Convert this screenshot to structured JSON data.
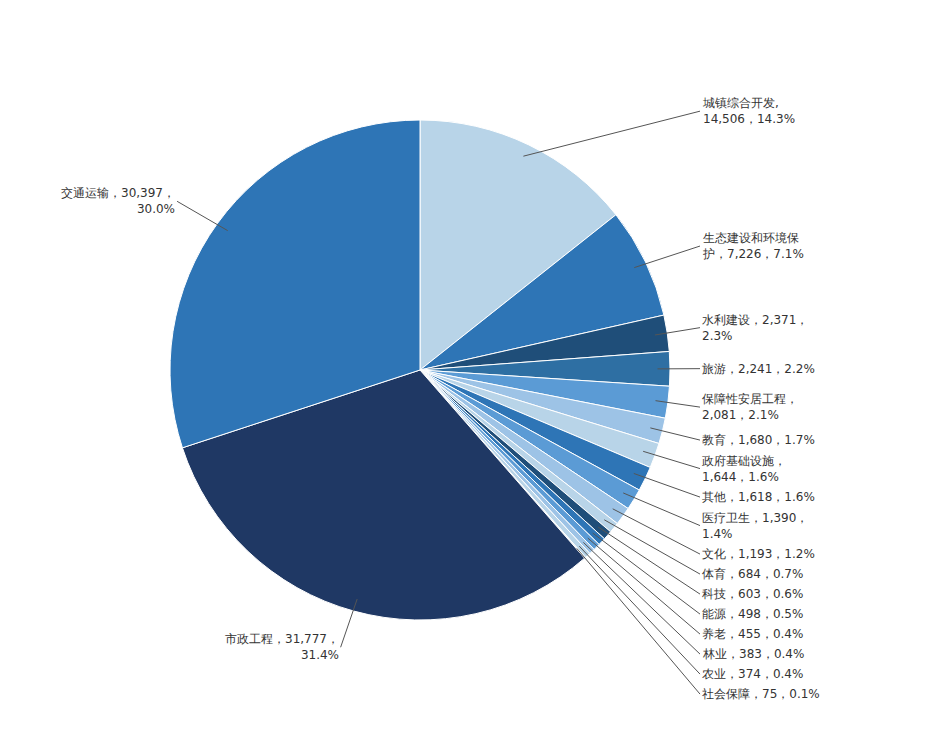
{
  "chart_data": {
    "type": "pie",
    "values": [
      14506,
      7226,
      2371,
      2241,
      2081,
      1680,
      1644,
      1618,
      1390,
      1193,
      684,
      603,
      498,
      455,
      383,
      374,
      75,
      31777,
      30397
    ],
    "value_labels": [
      "城镇综合开发,\n14,506，14.3%",
      "生态建设和环境保\n护，7,226，7.1%",
      "水利建设，2,371，\n2.3%",
      "旅游，2,241，2.2%",
      "保障性安居工程，\n2,081，2.1%",
      "教育，1,680，1.7%",
      "政府基础设施，\n1,644，1.6%",
      "其他，1,618，1.6%",
      "医疗卫生，1,390，\n1.4%",
      "文化，1,193，1.2%",
      "体育，684，0.7%",
      "科技，603，0.6%",
      "能源，498，0.5%",
      "养老，455，0.4%",
      "林业，383，0.4%",
      "农业，374，0.4%",
      "社会保障，75，0.1%",
      "市政工程，31,777，\n31.4%",
      "交通运输，30,397，\n30.0%"
    ],
    "colors": [
      "#b8d4e8",
      "#2e75b6",
      "#1f4e79",
      "#2e6fa3",
      "#5b9bd5",
      "#9dc3e6",
      "#b8d4e8",
      "#2e75b6",
      "#5b9bd5",
      "#9dc3e6",
      "#b8d4e8",
      "#1f4e79",
      "#2e75b6",
      "#5b9bd5",
      "#9dc3e6",
      "#b8d4e8",
      "#deeaf1",
      "#1f3864",
      "#2e75b6"
    ],
    "data_labels": true
  }
}
